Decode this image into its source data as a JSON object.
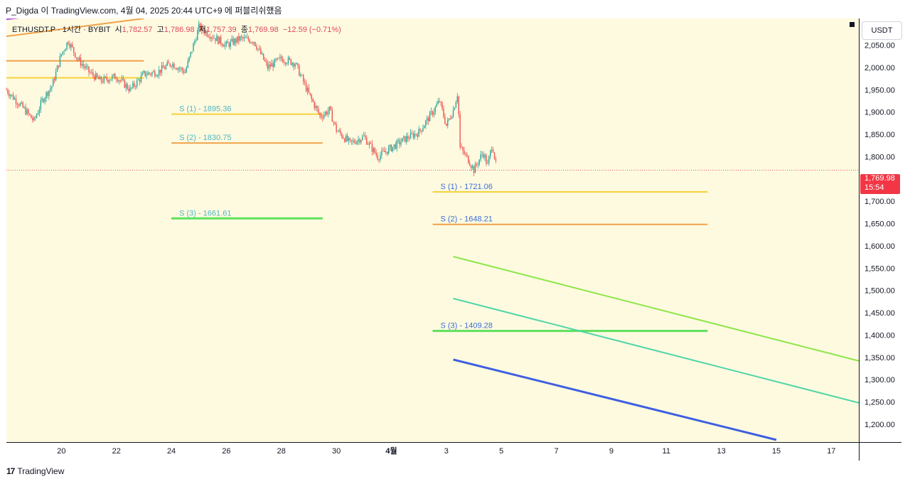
{
  "header": {
    "text": "P_Digda 이 TradingView.com, 4월 04, 2025 20:44 UTC+9 에 퍼블리쉬했음"
  },
  "legend": {
    "symbol": "ETHUSDT.P · 1시간 · BYBIT",
    "open_label": "시",
    "open": "1,782.57",
    "high_label": "고",
    "high": "1,786.98",
    "low_label": "저",
    "low": "1,757.39",
    "close_label": "종",
    "close": "1,769.98",
    "change": "−12.59 (−0.71%)"
  },
  "currency_button": "USDT",
  "current_price": {
    "price": "1,769.98",
    "countdown": "15:54"
  },
  "footer": {
    "logo": "17",
    "brand": "TradingView"
  },
  "colors": {
    "background": "#fefae0",
    "up": "#26a69a",
    "down": "#ef5350",
    "yellow": "#f5d33a",
    "orange": "#f0a14a",
    "green": "#5de15d",
    "lime": "#8ee648",
    "teal": "#4fd6a6",
    "blue": "#3d5fe0",
    "label_blue": "#3b6fd6",
    "label_teal": "#4fb6c0",
    "purple": "#b04fd8"
  },
  "chart_data": {
    "type": "candlestick",
    "symbol": "ETHUSDT.P",
    "interval": "1시간",
    "exchange": "BYBIT",
    "ylim": [
      1160,
      2110
    ],
    "y_ticks": [
      2050,
      2000,
      1950,
      1900,
      1850,
      1800,
      1750,
      1700,
      1650,
      1600,
      1550,
      1500,
      1450,
      1400,
      1350,
      1300,
      1250,
      1200
    ],
    "y_tick_labels": [
      "2,050.00",
      "2,000.00",
      "1,950.00",
      "1,900.00",
      "1,850.00",
      "1,800.00",
      "1,750.00",
      "1,700.00",
      "1,650.00",
      "1,600.00",
      "1,550.00",
      "1,500.00",
      "1,450.00",
      "1,400.00",
      "1,350.00",
      "1,300.00",
      "1,250.00",
      "1,200.00"
    ],
    "x_range_days": [
      "2025-03-18",
      "2025-04-18"
    ],
    "x_ticks": [
      {
        "date": "2025-03-20",
        "label": "20"
      },
      {
        "date": "2025-03-22",
        "label": "22"
      },
      {
        "date": "2025-03-24",
        "label": "24"
      },
      {
        "date": "2025-03-26",
        "label": "26"
      },
      {
        "date": "2025-03-28",
        "label": "28"
      },
      {
        "date": "2025-03-30",
        "label": "30"
      },
      {
        "date": "2025-04-01",
        "label": "4월",
        "bold": true
      },
      {
        "date": "2025-04-03",
        "label": "3"
      },
      {
        "date": "2025-04-05",
        "label": "5"
      },
      {
        "date": "2025-04-07",
        "label": "7"
      },
      {
        "date": "2025-04-09",
        "label": "9"
      },
      {
        "date": "2025-04-11",
        "label": "11"
      },
      {
        "date": "2025-04-13",
        "label": "13"
      },
      {
        "date": "2025-04-15",
        "label": "15"
      },
      {
        "date": "2025-04-17",
        "label": "17"
      }
    ],
    "price_path": [
      [
        "2025-03-18 00:00",
        1950
      ],
      [
        "2025-03-18 16:00",
        1905
      ],
      [
        "2025-03-19 00:00",
        1880
      ],
      [
        "2025-03-19 08:00",
        1930
      ],
      [
        "2025-03-19 16:00",
        1960
      ],
      [
        "2025-03-20 00:00",
        2030
      ],
      [
        "2025-03-20 06:00",
        2060
      ],
      [
        "2025-03-20 14:00",
        2020
      ],
      [
        "2025-03-21 00:00",
        1990
      ],
      [
        "2025-03-21 10:00",
        1970
      ],
      [
        "2025-03-22 00:00",
        1980
      ],
      [
        "2025-03-22 12:00",
        1950
      ],
      [
        "2025-03-23 00:00",
        1985
      ],
      [
        "2025-03-23 12:00",
        1990
      ],
      [
        "2025-03-24 00:00",
        2010
      ],
      [
        "2025-03-24 12:00",
        1990
      ],
      [
        "2025-03-24 18:00",
        2040
      ],
      [
        "2025-03-25 00:00",
        2090
      ],
      [
        "2025-03-25 12:00",
        2070
      ],
      [
        "2025-03-26 00:00",
        2050
      ],
      [
        "2025-03-26 12:00",
        2065
      ],
      [
        "2025-03-27 00:00",
        2060
      ],
      [
        "2025-03-27 12:00",
        2000
      ],
      [
        "2025-03-28 00:00",
        2020
      ],
      [
        "2025-03-28 12:00",
        2010
      ],
      [
        "2025-03-29 00:00",
        1940
      ],
      [
        "2025-03-29 10:00",
        1890
      ],
      [
        "2025-03-29 18:00",
        1905
      ],
      [
        "2025-03-30 00:00",
        1860
      ],
      [
        "2025-03-30 12:00",
        1830
      ],
      [
        "2025-03-31 00:00",
        1845
      ],
      [
        "2025-03-31 12:00",
        1800
      ],
      [
        "2025-04-01 00:00",
        1820
      ],
      [
        "2025-04-01 12:00",
        1840
      ],
      [
        "2025-04-02 00:00",
        1855
      ],
      [
        "2025-04-02 12:00",
        1900
      ],
      [
        "2025-04-02 18:00",
        1925
      ],
      [
        "2025-04-03 00:00",
        1870
      ],
      [
        "2025-04-03 06:00",
        1905
      ],
      [
        "2025-04-03 10:00",
        1945
      ],
      [
        "2025-04-03 12:00",
        1820
      ],
      [
        "2025-04-03 20:00",
        1790
      ],
      [
        "2025-04-04 00:00",
        1770
      ],
      [
        "2025-04-04 04:00",
        1790
      ],
      [
        "2025-04-04 08:00",
        1810
      ],
      [
        "2025-04-04 12:00",
        1780
      ],
      [
        "2025-04-04 16:00",
        1830
      ],
      [
        "2025-04-04 20:00",
        1769.98
      ]
    ],
    "current_price": 1769.98,
    "horizontal_levels": [
      {
        "label": "S (1) - 1895.36",
        "value": 1895.36,
        "x_start": "2025-03-24",
        "x_end": "2025-03-29 12:00",
        "color": "#f5d33a",
        "label_color": "#4fb6c0"
      },
      {
        "label": "S (2) - 1830.75",
        "value": 1830.75,
        "x_start": "2025-03-24",
        "x_end": "2025-03-29 12:00",
        "color": "#f0a14a",
        "label_color": "#4fb6c0"
      },
      {
        "label": "S (3) - 1661.61",
        "value": 1661.61,
        "x_start": "2025-03-24",
        "x_end": "2025-03-29 12:00",
        "color": "#5de15d",
        "label_color": "#4fb6c0"
      },
      {
        "label": "S (1) - 1721.06",
        "value": 1721.06,
        "x_start": "2025-04-02 12:00",
        "x_end": "2025-04-12 12:00",
        "color": "#f5d33a",
        "label_color": "#3b6fd6"
      },
      {
        "label": "S (2) - 1648.21",
        "value": 1648.21,
        "x_start": "2025-04-02 12:00",
        "x_end": "2025-04-12 12:00",
        "color": "#f0a14a",
        "label_color": "#3b6fd6"
      },
      {
        "label": "S (3) - 1409.28",
        "value": 1409.28,
        "x_start": "2025-04-02 12:00",
        "x_end": "2025-04-12 12:00",
        "color": "#5de15d",
        "label_color": "#3b6fd6"
      },
      {
        "label": "",
        "value": 2015,
        "x_start": "2025-03-18",
        "x_end": "2025-03-23",
        "color": "#f0a14a",
        "label_color": ""
      },
      {
        "label": "",
        "value": 1977,
        "x_start": "2025-03-18",
        "x_end": "2025-03-23",
        "color": "#f5d33a",
        "label_color": ""
      }
    ],
    "trend_lines": [
      {
        "from": [
          "2025-03-18",
          2070
        ],
        "to": [
          "2025-03-23",
          2110
        ],
        "color": "#f0a14a",
        "width": 2
      },
      {
        "from": [
          "2025-03-18",
          2108
        ],
        "to": [
          "2025-03-20 06:00",
          2125
        ],
        "color": "#b04fd8",
        "width": 2
      },
      {
        "from": [
          "2025-04-03 06:00",
          1576
        ],
        "to": [
          "2025-04-18",
          1342
        ],
        "color": "#8ee648",
        "width": 2
      },
      {
        "from": [
          "2025-04-03 06:00",
          1482
        ],
        "to": [
          "2025-04-18",
          1248
        ],
        "color": "#4fd6a6",
        "width": 2
      },
      {
        "from": [
          "2025-04-03 06:00",
          1345
        ],
        "to": [
          "2025-04-15",
          1165
        ],
        "color": "#3d5fe0",
        "width": 3
      }
    ]
  }
}
